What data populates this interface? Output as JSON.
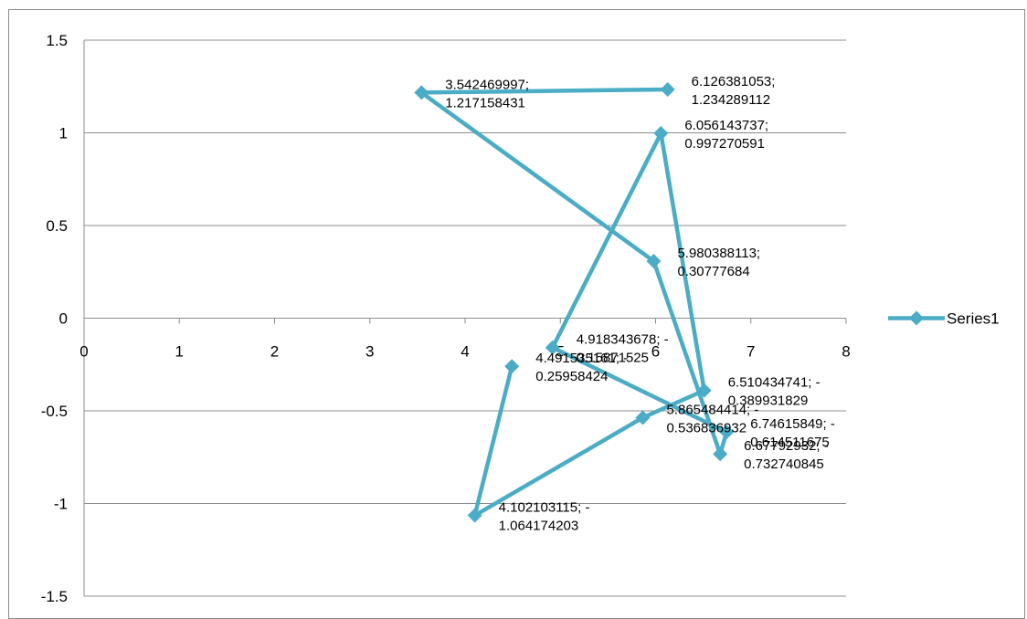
{
  "chart_data": {
    "type": "scatter",
    "subtype": "scatter-with-straight-lines-and-markers",
    "title": "",
    "xlabel": "",
    "ylabel": "",
    "xlim": [
      0,
      8
    ],
    "ylim": [
      -1.5,
      1.5
    ],
    "x_ticks": [
      "0",
      "1",
      "2",
      "3",
      "4",
      "5",
      "6",
      "7",
      "8"
    ],
    "y_ticks": [
      "1.5",
      "1",
      "0.5",
      "0",
      "-0.5",
      "-1",
      "-1.5"
    ],
    "grid": "horizontal",
    "legend_position": "right",
    "colors": {
      "series": "#4bacc6",
      "grid": "#8c8c8c",
      "axis": "#8c8c8c"
    },
    "series": [
      {
        "name": "Series1",
        "points": [
          {
            "x": 6.126381053,
            "y": 1.234289112,
            "label": [
              "6.126381053;",
              "1.234289112"
            ]
          },
          {
            "x": 3.542469997,
            "y": 1.217158431,
            "label": [
              "3.542469997;",
              "1.217158431"
            ]
          },
          {
            "x": 5.980388113,
            "y": 0.30777684,
            "label": [
              "5.980388113;",
              "0.30777684"
            ]
          },
          {
            "x": 6.67792932,
            "y": -0.732740845,
            "label": [
              "6.67792932; -",
              "0.732740845"
            ]
          },
          {
            "x": 6.74615849,
            "y": -0.614511675,
            "label": [
              "6.74615849; -",
              "0.614511675"
            ]
          },
          {
            "x": 4.918343678,
            "y": -0.15871525,
            "label": [
              "4.918343678; -",
              "0.15871525"
            ]
          },
          {
            "x": 6.056143737,
            "y": 0.997270591,
            "label": [
              "6.056143737;",
              "0.997270591"
            ]
          },
          {
            "x": 6.510434741,
            "y": -0.389931829,
            "label": [
              "6.510434741; -",
              "0.389931829"
            ]
          },
          {
            "x": 5.865484414,
            "y": -0.536836932,
            "label": [
              "5.865484414; -",
              "0.536836932"
            ]
          },
          {
            "x": 4.102103115,
            "y": -1.064174203,
            "label": [
              "4.102103115; -",
              "1.064174203"
            ]
          },
          {
            "x": 4.491535161,
            "y": -0.25958424,
            "label": [
              "4.491535161; -",
              "0.25958424"
            ]
          }
        ]
      }
    ]
  }
}
